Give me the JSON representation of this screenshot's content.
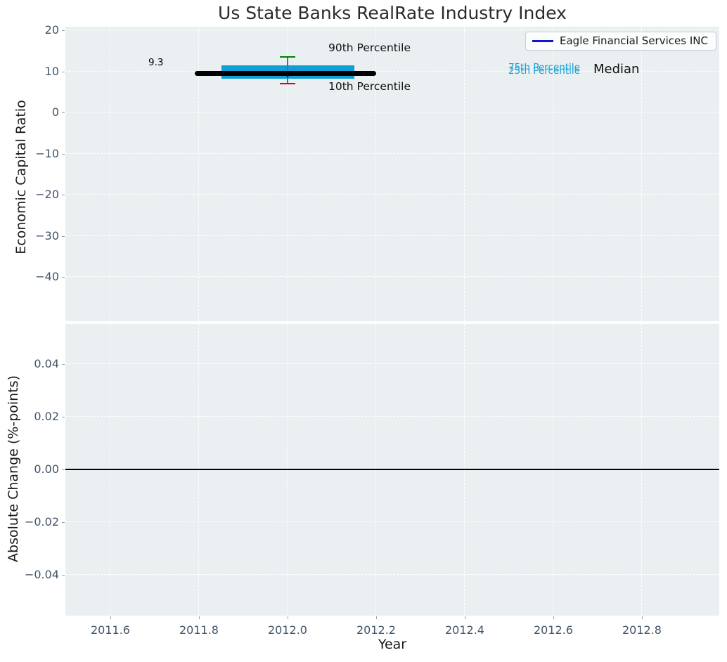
{
  "chart_data": {
    "type": "line",
    "title": "Us State Banks RealRate Industry Index",
    "xlabel": "Year",
    "xlim": [
      2011.5,
      2012.98
    ],
    "xticks": [
      2011.6,
      2011.8,
      2012.0,
      2012.2,
      2012.4,
      2012.6,
      2012.8
    ],
    "xtick_labels": [
      "2011.6",
      "2011.8",
      "2012.0",
      "2012.2",
      "2012.4",
      "2012.6",
      "2012.8"
    ],
    "grid": "white dashed gridlines on light gray panels",
    "legend": {
      "position": "upper right",
      "entries": [
        {
          "label": "Eagle Financial Services INC",
          "color": "#1414cc"
        }
      ]
    },
    "panels": [
      {
        "ylabel": "Economic Capital Ratio",
        "ylim": [
          -50.8,
          20.9
        ],
        "yticks": [
          20,
          10,
          0,
          -10,
          -20,
          -30,
          -40
        ],
        "ytick_labels": [
          "20",
          "10",
          "0",
          "−10",
          "−20",
          "−30",
          "−40"
        ],
        "series": [
          {
            "name": "Eagle Financial Services INC",
            "type": "scatter",
            "marker": "triangle-down",
            "color": "#1414cc",
            "x": [
              2012.0
            ],
            "y": [
              9.3
            ],
            "point_label": "9.3"
          },
          {
            "name": "Median",
            "type": "line",
            "color": "#000000",
            "x": [
              2011.79,
              2012.2
            ],
            "y": [
              9.5,
              9.5
            ]
          },
          {
            "name": "25th-75th Percentile band",
            "type": "band",
            "color": "#0f9ed5",
            "x": [
              2011.85,
              2012.15
            ],
            "y_low": 8.2,
            "y_high": 11.4
          },
          {
            "name": "10th-90th Percentile whiskers",
            "type": "errorbar",
            "x": 2012.0,
            "p90": 13.5,
            "p10": 7.0,
            "line_color": "#6a6a6a",
            "cap_color_top": "#008002",
            "cap_color_bottom": "#e8000b"
          }
        ],
        "annotations": [
          {
            "text": "9.3",
            "color": "#000000"
          },
          {
            "text": "90th Percentile",
            "color": "#111111"
          },
          {
            "text": "10th Percentile",
            "color": "#111111"
          },
          {
            "text": "75th Percentile",
            "color": "#12a0d6"
          },
          {
            "text": "25th Percentile",
            "color": "#12a0d6"
          },
          {
            "text": "Median",
            "color": "#111111"
          }
        ]
      },
      {
        "ylabel": "Absolute Change (%-points)",
        "ylim": [
          -0.0555,
          0.0552
        ],
        "yticks": [
          0.04,
          0.02,
          0.0,
          -0.02,
          -0.04
        ],
        "ytick_labels": [
          "0.04",
          "0.02",
          "0.00",
          "−0.02",
          "−0.04"
        ],
        "series": [
          {
            "name": "zero-change-line",
            "type": "hline",
            "y": 0.0,
            "color": "#000000"
          }
        ]
      }
    ]
  }
}
